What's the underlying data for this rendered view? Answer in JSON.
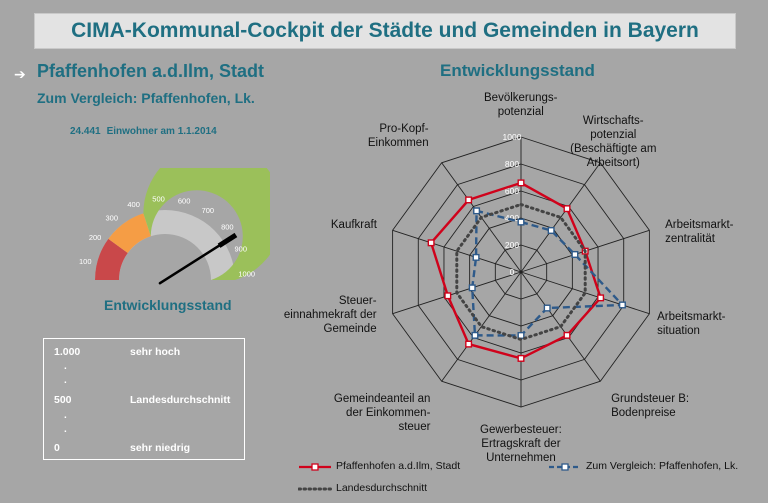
{
  "header": {
    "title": "CIMA-Kommunal-Cockpit der Städte und  Gemeinden in Bayern"
  },
  "place": {
    "arrow": "➔",
    "name": "Pfaffenhofen a.d.Ilm, Stadt",
    "compare": "Zum Vergleich: Pfaffenhofen, Lk.",
    "population_value": "24.441",
    "population_label": "Einwohner am 1.1.2014"
  },
  "gauge": {
    "title": "Entwicklungsstand",
    "ticks": [
      "100",
      "200",
      "300",
      "400",
      "500",
      "600",
      "700",
      "800",
      "900",
      "1000"
    ],
    "value": 820,
    "colors": {
      "low": "#c9484a",
      "mid": "#f59d45",
      "high": "#9bc05a",
      "base": "#c8c8c8",
      "needle": "#000000"
    }
  },
  "scale_legend": {
    "rows": [
      {
        "value": "1.000",
        "desc": "sehr hoch"
      },
      {
        "value": "500",
        "desc": "Landesdurchschnitt"
      },
      {
        "value": "0",
        "desc": "sehr niedrig"
      }
    ],
    "dot": "."
  },
  "chart_data": {
    "type": "radar",
    "title": "Entwicklungsstand",
    "axes": [
      "Bevölkerungs-\npotenzial",
      "Wirtschafts-\npotenzial\n(Beschäftigte am\nArbeitsort)",
      "Arbeitsmarkt-\nzentralität",
      "Arbeitsmarkt-\nsituation",
      "Grundsteuer B:\nBodenpreise",
      "Gewerbesteuer:\nErtragskraft der\nUnternehmen",
      "Gemeindeanteil an\nder Einkommen-\nsteuer",
      "Steuer-\neinnahmekraft der\nGemeinde",
      "Kaufkraft",
      "Pro-Kopf-\nEinkommen"
    ],
    "ticks": [
      "0",
      "200",
      "400",
      "600",
      "800",
      "1000"
    ],
    "range": [
      0,
      1000
    ],
    "series": [
      {
        "name": "Pfaffenhofen a.d.Ilm, Stadt",
        "color": "#d0021b",
        "style": "solid-square",
        "values": [
          660,
          580,
          500,
          620,
          580,
          640,
          660,
          570,
          700,
          660
        ]
      },
      {
        "name": "Zum Vergleich: Pfaffenhofen, Lk.",
        "color": "#2e5a8a",
        "style": "dashed-square",
        "values": [
          370,
          380,
          420,
          790,
          330,
          470,
          580,
          380,
          350,
          560
        ]
      },
      {
        "name": "Landesdurchschnitt",
        "color": "#444444",
        "style": "dotted",
        "values": [
          500,
          500,
          500,
          500,
          500,
          500,
          500,
          500,
          500,
          500
        ]
      }
    ]
  }
}
